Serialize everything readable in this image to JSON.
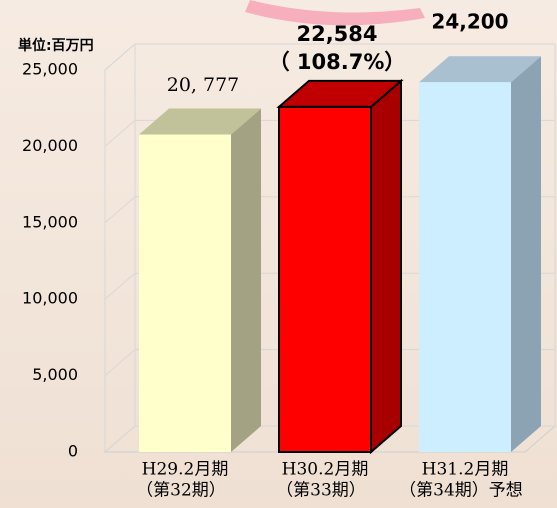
{
  "chart_data": {
    "type": "bar3d",
    "unit_label": "単位:百万円",
    "categories": [
      [
        "H29.2月期",
        "（第32期）"
      ],
      [
        "H30.2月期",
        "（第33期）"
      ],
      [
        "H31.2月期",
        "（第34期）予想"
      ]
    ],
    "values": [
      20777,
      22584,
      24200
    ],
    "value_labels": [
      "20, 777",
      "22,584",
      "24,200"
    ],
    "annotation": "（ 108.7%）",
    "colors": [
      {
        "front": "#ffffcc",
        "side": "#a3a383",
        "top": "#c2c29a"
      },
      {
        "front": "#ff0000",
        "side": "#a80000",
        "top": "#c00000"
      },
      {
        "front": "#cceeff",
        "side": "#8ba3b3",
        "top": "#a8c0d0"
      }
    ],
    "ylim": [
      0,
      25000
    ],
    "yticks": [
      0,
      {
        "value": 5000,
        "label": "5,000"
      },
      {
        "value": 10000,
        "label": "10,000"
      },
      {
        "value": 15000,
        "label": "15,000"
      },
      {
        "value": 20000,
        "label": "20,000"
      },
      {
        "value": 25000,
        "label": "25,000"
      }
    ],
    "grid": true
  }
}
